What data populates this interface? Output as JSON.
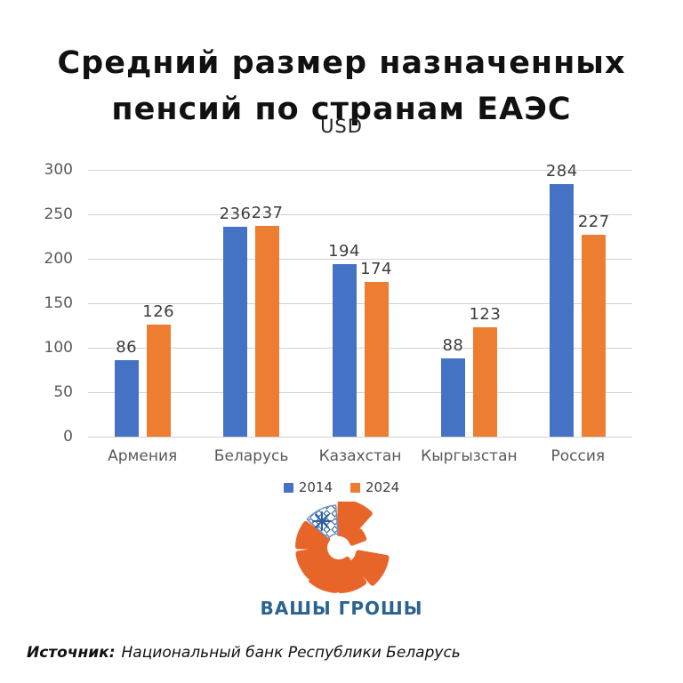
{
  "header": {
    "title": "Средний размер назначенных пенсий по странам ЕАЭС",
    "subtitle": "USD"
  },
  "chart_data": {
    "type": "bar",
    "title": "Средний размер назначенных пенсий по странам ЕАЭС",
    "units": "USD",
    "categories": [
      "Армения",
      "Беларусь",
      "Казахстан",
      "Кыргызстан",
      "Россия"
    ],
    "series": [
      {
        "name": "2014",
        "color": "#4472C4",
        "values": [
          86,
          236,
          194,
          88,
          284
        ]
      },
      {
        "name": "2024",
        "color": "#ED7D31",
        "values": [
          126,
          237,
          174,
          123,
          227
        ]
      }
    ],
    "ylim": [
      0,
      300
    ],
    "ytick_step": 50,
    "grid": true,
    "legend_position": "bottom",
    "gridline_color": "#d2d2d2",
    "tick_color": "#595959",
    "category_color": "#595959",
    "value_label_color": "#3d3d3d"
  },
  "logo": {
    "text": "ВАШЫ ГРОШЫ",
    "orange": "#E8652A",
    "ornament_blue": "#3A6BA5",
    "text_color": "#2B6390"
  },
  "source": {
    "label": "Источник:",
    "text": "Национальный банк Республики Беларусь"
  }
}
